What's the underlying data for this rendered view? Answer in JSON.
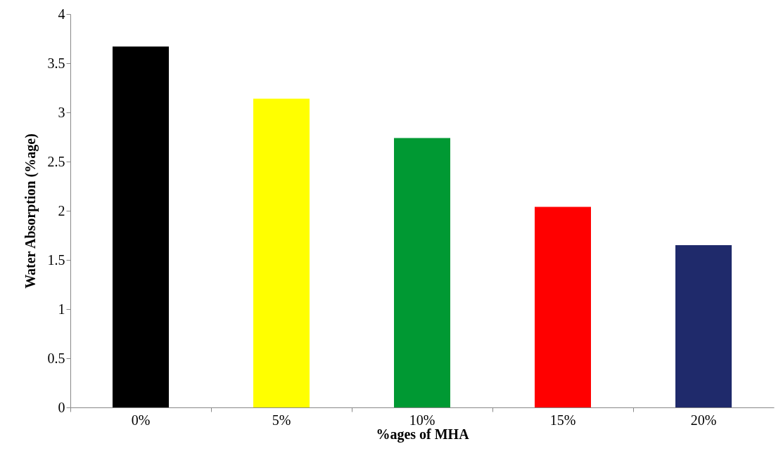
{
  "chart_data": {
    "type": "bar",
    "xlabel": "%ages of MHA",
    "ylabel": "Water Absorption (%age)",
    "categories": [
      "0%",
      "5%",
      "10%",
      "15%",
      "20%"
    ],
    "values": [
      3.67,
      3.14,
      2.74,
      2.04,
      1.65
    ],
    "colors": [
      "#000000",
      "#ffff00",
      "#009933",
      "#ff0000",
      "#1f2a6b"
    ],
    "ylim": [
      0,
      4
    ],
    "yticks": [
      0,
      0.5,
      1,
      1.5,
      2,
      2.5,
      3,
      3.5,
      4
    ],
    "grid": false
  }
}
